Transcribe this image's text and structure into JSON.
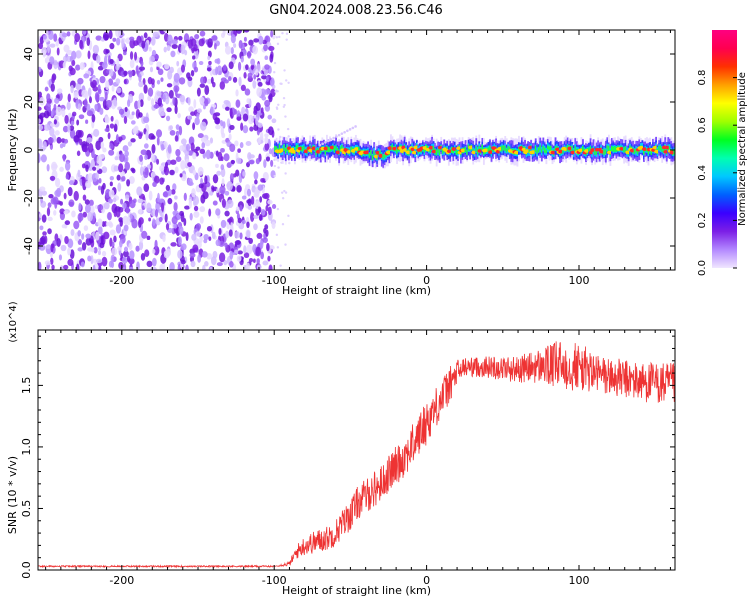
{
  "title": "GN04.2024.008.23.56.C46",
  "chart_data": [
    {
      "type": "heatmap",
      "xlabel": "Height of straight line (km)",
      "ylabel": "Frequency (Hz)",
      "xlim": [
        -255,
        163
      ],
      "ylim": [
        -50,
        50
      ],
      "xticks": [
        -200,
        -100,
        0,
        100
      ],
      "yticks": [
        -40,
        -20,
        0,
        20,
        40
      ],
      "colorbar": {
        "label": "Normalized spectral amplitude",
        "range": [
          0,
          1
        ],
        "ticks": [
          "0.0",
          "0.2",
          "0.4",
          "0.6",
          "0.8"
        ],
        "colors": [
          "#f0e6ff",
          "#b388ff",
          "#7c1fe6",
          "#3a00ff",
          "#0060ff",
          "#00c8ff",
          "#00ffb0",
          "#00ff20",
          "#a0ff00",
          "#ffff00",
          "#ffa000",
          "#ff3000",
          "#ff0050",
          "#ff0080"
        ]
      },
      "noise_region": {
        "x": [
          -255,
          -100
        ],
        "y": [
          -50,
          50
        ]
      },
      "signal_line": {
        "x": [
          -100,
          163
        ],
        "frequency": 0
      }
    },
    {
      "type": "line",
      "xlabel": "Height of straight line (km)",
      "ylabel": "SNR (10 * v/v)",
      "y_multiplier": "(x10^4)",
      "xlim": [
        -255,
        163
      ],
      "ylim": [
        0,
        19500
      ],
      "xticks": [
        -200,
        -100,
        0,
        100
      ],
      "yticks": [
        "0.0",
        "0.5",
        "1.0",
        "1.5"
      ],
      "series": [
        {
          "color": "#ee3333",
          "x": [
            -255,
            -200,
            -150,
            -100,
            -90,
            -85,
            -80,
            -75,
            -70,
            -65,
            -60,
            -55,
            -50,
            -45,
            -40,
            -35,
            -30,
            -25,
            -20,
            -15,
            -10,
            -5,
            0,
            5,
            10,
            15,
            20,
            25,
            30,
            40,
            50,
            60,
            70,
            80,
            90,
            100,
            110,
            120,
            130,
            140,
            150,
            163
          ],
          "y": [
            300,
            300,
            300,
            300,
            500,
            1500,
            2000,
            2200,
            2400,
            2600,
            3000,
            3800,
            4500,
            5500,
            6000,
            6500,
            7000,
            7800,
            8500,
            9200,
            10000,
            11000,
            12000,
            13000,
            14000,
            15000,
            16000,
            16500,
            16500,
            16500,
            16400,
            16300,
            16500,
            16600,
            16700,
            16500,
            16000,
            15700,
            15500,
            15300,
            15200,
            15000
          ],
          "noise_amplitude": [
            0,
            0,
            0,
            0,
            200,
            600,
            800,
            900,
            1000,
            1000,
            1100,
            1200,
            1300,
            1400,
            1400,
            1500,
            1500,
            1500,
            1600,
            1700,
            1700,
            1800,
            1800,
            1700,
            1600,
            1500,
            1200,
            800,
            800,
            900,
            1000,
            1100,
            1300,
            1700,
            2200,
            2000,
            1700,
            1600,
            1600,
            1600,
            1700,
            1800
          ]
        }
      ]
    }
  ]
}
